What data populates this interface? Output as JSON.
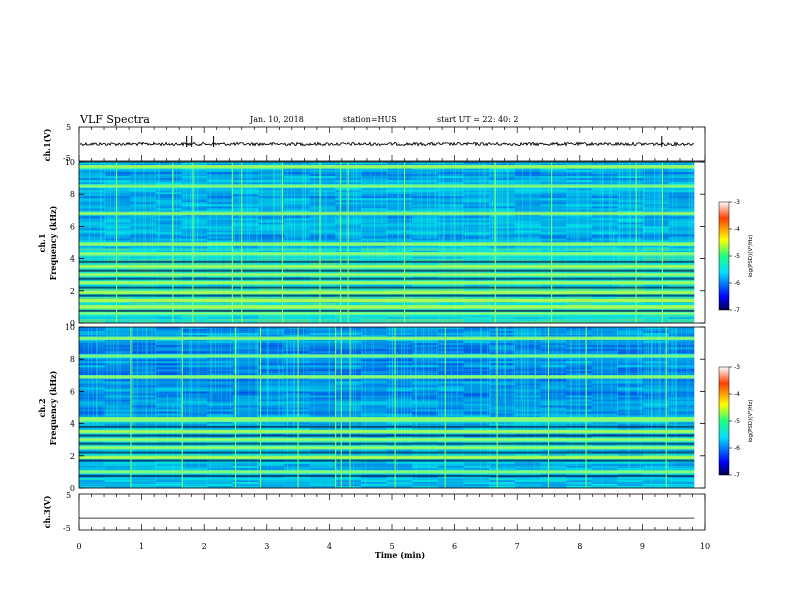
{
  "header": {
    "title": "VLF Spectra",
    "date": "Jan. 10, 2018",
    "station": "station=HUS",
    "start_time": "start UT =  22: 40: 2"
  },
  "colors": {
    "trace": "#000000",
    "spectrum_low": "#00004a",
    "spectrum_high": "#ff0000"
  },
  "chart_data": [
    {
      "type": "line",
      "name": "ch1-voltage",
      "ylabel": "ch.1(V)",
      "ylim": [
        -5,
        5
      ],
      "yticks": [
        "5",
        "-5"
      ],
      "xlim": [
        0,
        10
      ],
      "baseline": 0,
      "spikes_min": [
        1.72,
        1.8,
        2.15,
        9.31
      ]
    },
    {
      "type": "heatmap",
      "name": "ch1-spectrogram",
      "ylabel": "ch.1\nFrequency (kHz)",
      "ylim": [
        0,
        10
      ],
      "yticks": [
        "0",
        "2",
        "4",
        "6",
        "8",
        "10"
      ],
      "xlim": [
        0,
        9.83
      ],
      "bands_khz": [
        0.6,
        1.0,
        1.4,
        1.9,
        2.5,
        3.0,
        3.5,
        4.3,
        4.9,
        6.8,
        8.5,
        9.7
      ],
      "vertical_events_min": [
        0.6,
        1.5,
        1.82,
        2.45,
        2.6,
        3.25,
        3.85,
        4.18,
        4.3,
        5.2,
        6.65,
        7.55,
        8.9,
        9.32
      ]
    },
    {
      "type": "heatmap",
      "name": "ch2-spectrogram",
      "ylabel": "ch.2\nFrequency (kHz)",
      "ylim": [
        0,
        10
      ],
      "yticks": [
        "0",
        "2",
        "4",
        "6",
        "8",
        "10"
      ],
      "xlim": [
        0,
        9.83
      ],
      "bands_khz": [
        1.0,
        1.9,
        2.5,
        3.0,
        3.5,
        4.2,
        4.3,
        6.9,
        8.2,
        9.3
      ],
      "vertical_events_min": [
        0.83,
        1.65,
        2.5,
        2.9,
        3.5,
        4.1,
        4.19,
        4.33,
        5.05,
        5.85,
        6.68,
        7.5,
        8.1,
        9.38
      ]
    },
    {
      "type": "line",
      "name": "ch3-voltage",
      "ylabel": "ch.3(V)",
      "ylim": [
        -5,
        5
      ],
      "yticks": [
        "5",
        "-5"
      ],
      "xlim": [
        0,
        10
      ],
      "xlabel": "Time (min)",
      "xticks": [
        "0",
        "1",
        "2",
        "3",
        "4",
        "5",
        "6",
        "7",
        "8",
        "9",
        "10"
      ],
      "baseline": -1.7
    }
  ],
  "colorbars": [
    {
      "label": "log(PSD)(V²/Hz)",
      "range": [
        -7,
        -3
      ],
      "ticks": [
        "-3",
        "-4",
        "-5",
        "-6",
        "-7"
      ]
    },
    {
      "label": "log(PSD)(V²/Hz)",
      "range": [
        -7,
        -3
      ],
      "ticks": [
        "-3",
        "-4",
        "-5",
        "-6",
        "-7"
      ]
    }
  ]
}
